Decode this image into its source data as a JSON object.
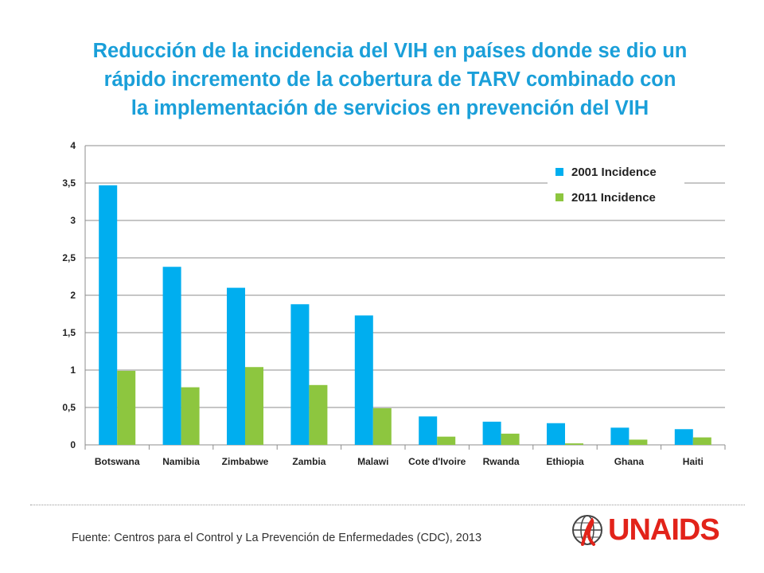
{
  "title": {
    "line1": "Reducción de la incidencia del VIH en países donde se dio un",
    "line2": "rápido incremento de la cobertura de TARV combinado con",
    "line3": "la implementación de servicios en prevención del VIH"
  },
  "chart_data": {
    "type": "bar",
    "categories": [
      "Botswana",
      "Namibia",
      "Zimbabwe",
      "Zambia",
      "Malawi",
      "Cote d'Ivoire",
      "Rwanda",
      "Ethiopia",
      "Ghana",
      "Haiti"
    ],
    "series": [
      {
        "name": "2001 Incidence",
        "color": "#00aeef",
        "values": [
          3.47,
          2.38,
          2.1,
          1.88,
          1.73,
          0.38,
          0.31,
          0.29,
          0.23,
          0.21
        ]
      },
      {
        "name": "2011 Incidence",
        "color": "#8dc63f",
        "values": [
          0.99,
          0.77,
          1.04,
          0.8,
          0.49,
          0.11,
          0.15,
          0.02,
          0.07,
          0.1
        ]
      }
    ],
    "ylim": [
      0,
      4
    ],
    "yticks": [
      "0",
      "0,5",
      "1",
      "1,5",
      "2",
      "2,5",
      "3",
      "3,5",
      "4"
    ],
    "grid": true,
    "legend_position": "top-right"
  },
  "footer": {
    "source": "Fuente: Centros para el Control y La Prevención de Enfermedades (CDC), 2013",
    "logo_text": "UNAIDS"
  }
}
